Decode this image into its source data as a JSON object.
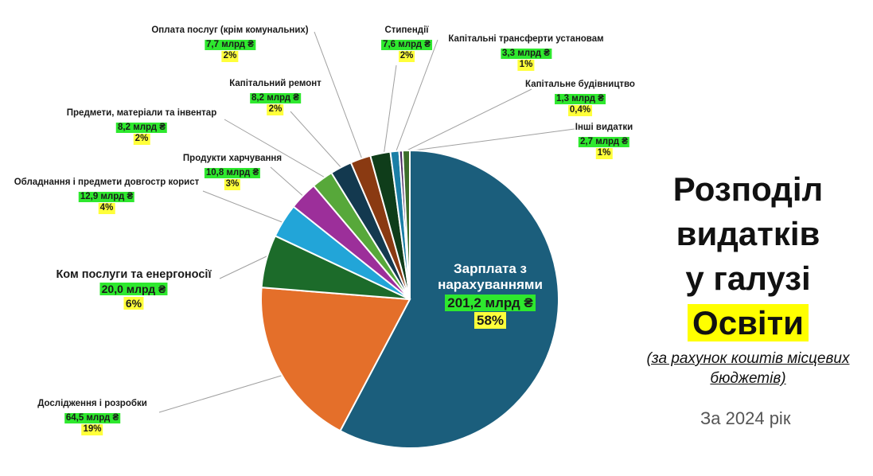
{
  "chart_data": {
    "type": "pie",
    "unit": "млрд ₴",
    "slices": [
      {
        "label": "Зарплата з нарахуваннями",
        "value": 201.2,
        "value_text": "201,2 млрд ₴",
        "percent_text": "58%",
        "color": "#1b5e7c"
      },
      {
        "label": "Дослідження і розробки",
        "value": 64.5,
        "value_text": "64,5 млрд ₴",
        "percent_text": "19%",
        "color": "#e46f2a"
      },
      {
        "label": "Ком послуги та енергоносії",
        "value": 20.0,
        "value_text": "20,0 млрд ₴",
        "percent_text": "6%",
        "color": "#1c6b2a"
      },
      {
        "label": "Обладнання і предмети довгостр корист",
        "value": 12.9,
        "value_text": "12,9 млрд ₴",
        "percent_text": "4%",
        "color": "#22a5d8"
      },
      {
        "label": "Продукти харчування",
        "value": 10.8,
        "value_text": "10,8 млрд ₴",
        "percent_text": "3%",
        "color": "#9c2f9a"
      },
      {
        "label": "Предмети, матеріали та інвентар",
        "value": 8.2,
        "value_text": "8,2 млрд ₴",
        "percent_text": "2%",
        "color": "#57a83a"
      },
      {
        "label": "Капітальний ремонт",
        "value": 8.2,
        "value_text": "8,2 млрд ₴",
        "percent_text": "2%",
        "color": "#13394f"
      },
      {
        "label": "Оплата послуг (крім комунальних)",
        "value": 7.7,
        "value_text": "7,7 млрд ₴",
        "percent_text": "2%",
        "color": "#8a3a12"
      },
      {
        "label": "Стипендії",
        "value": 7.6,
        "value_text": "7,6 млрд ₴",
        "percent_text": "2%",
        "color": "#0f3d1a"
      },
      {
        "label": "Капітальні трансферти установам",
        "value": 3.3,
        "value_text": "3,3 млрд ₴",
        "percent_text": "1%",
        "color": "#1a7fa6"
      },
      {
        "label": "Капітальне будівництво",
        "value": 1.3,
        "value_text": "1,3 млрд ₴",
        "percent_text": "0,4%",
        "color": "#4a2a60"
      },
      {
        "label": "Інші видатки",
        "value": 2.7,
        "value_text": "2,7 млрд ₴",
        "percent_text": "1%",
        "color": "#3c6e2a"
      }
    ],
    "title_lines": [
      "Розподіл",
      "видатків",
      "у галузі",
      "Освіти"
    ],
    "subtitle": "(за рахунок коштів місцевих бюджетів)",
    "period": "За 2024 рік"
  }
}
